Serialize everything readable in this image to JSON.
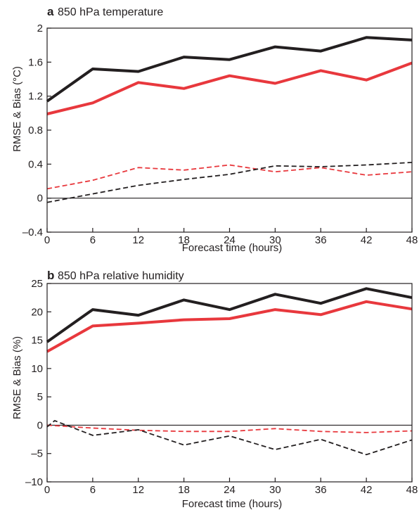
{
  "chart_data": [
    {
      "type": "line",
      "panel_letter": "a",
      "title": "850 hPa temperature",
      "xlabel": "Forecast time (hours)",
      "ylabel": "RMSE & Bias (°C)",
      "x": [
        0,
        6,
        12,
        18,
        24,
        30,
        36,
        42,
        48
      ],
      "xlim": [
        0,
        48
      ],
      "ylim": [
        -0.4,
        2
      ],
      "xticks": [
        0,
        6,
        12,
        18,
        24,
        30,
        36,
        42,
        48
      ],
      "yticks": [
        -0.4,
        0,
        0.4,
        0.8,
        1.2,
        1.6,
        2
      ],
      "ytick_labels": [
        "–0.4",
        "0",
        "0.4",
        "0.8",
        "1.2",
        "1.6",
        "2"
      ],
      "zero_line": true,
      "grid": false,
      "series": [
        {
          "style": "solid",
          "color": "#231f20",
          "x": [
            0,
            6,
            12,
            18,
            24,
            30,
            36,
            42,
            48
          ],
          "values": [
            1.14,
            1.52,
            1.49,
            1.66,
            1.63,
            1.78,
            1.73,
            1.89,
            1.86
          ]
        },
        {
          "style": "solid",
          "color": "#e8383d",
          "x": [
            0,
            6,
            12,
            18,
            24,
            30,
            36,
            42,
            48
          ],
          "values": [
            0.99,
            1.12,
            1.36,
            1.29,
            1.44,
            1.35,
            1.5,
            1.39,
            1.59
          ]
        },
        {
          "style": "dashed",
          "color": "#e8383d",
          "x": [
            0,
            6,
            12,
            18,
            24,
            30,
            36,
            42,
            48
          ],
          "values": [
            0.11,
            0.21,
            0.36,
            0.33,
            0.39,
            0.31,
            0.36,
            0.27,
            0.31
          ]
        },
        {
          "style": "dashed",
          "color": "#231f20",
          "x": [
            0,
            6,
            12,
            18,
            24,
            30,
            36,
            42,
            48
          ],
          "values": [
            -0.05,
            0.05,
            0.15,
            0.22,
            0.28,
            0.38,
            0.37,
            0.39,
            0.42
          ]
        }
      ]
    },
    {
      "type": "line",
      "panel_letter": "b",
      "title": "850 hPa relative humidity",
      "xlabel": "Forecast time (hours)",
      "ylabel": "RMSE & Bias (%)",
      "x": [
        0,
        6,
        12,
        18,
        24,
        30,
        36,
        42,
        48
      ],
      "xlim": [
        0,
        48
      ],
      "ylim": [
        -10,
        25
      ],
      "xticks": [
        0,
        6,
        12,
        18,
        24,
        30,
        36,
        42,
        48
      ],
      "yticks": [
        -10,
        -5,
        0,
        5,
        10,
        15,
        20,
        25
      ],
      "ytick_labels": [
        "–10",
        "–5",
        "0",
        "5",
        "10",
        "15",
        "20",
        "25"
      ],
      "zero_line": true,
      "grid": false,
      "series": [
        {
          "style": "solid",
          "color": "#231f20",
          "x": [
            0,
            6,
            12,
            18,
            24,
            30,
            36,
            42,
            48
          ],
          "values": [
            14.7,
            20.4,
            19.4,
            22.1,
            20.4,
            23.1,
            21.5,
            24.1,
            22.5
          ]
        },
        {
          "style": "solid",
          "color": "#e8383d",
          "x": [
            0,
            6,
            12,
            18,
            24,
            30,
            36,
            42,
            48
          ],
          "values": [
            13.0,
            17.5,
            18.0,
            18.6,
            18.8,
            20.4,
            19.5,
            21.8,
            20.5
          ]
        },
        {
          "style": "dashed",
          "color": "#e8383d",
          "x": [
            0,
            6,
            12,
            18,
            24,
            30,
            36,
            42,
            48
          ],
          "values": [
            0.0,
            -0.5,
            -0.9,
            -1.1,
            -1.1,
            -0.6,
            -1.1,
            -1.3,
            -1.0
          ]
        },
        {
          "style": "dashed",
          "color": "#231f20",
          "x": [
            0,
            1,
            6,
            12,
            18,
            24,
            30,
            36,
            42,
            48
          ],
          "values": [
            -0.3,
            0.8,
            -1.8,
            -0.8,
            -3.5,
            -1.9,
            -4.3,
            -2.5,
            -5.2,
            -2.6
          ]
        }
      ]
    }
  ]
}
